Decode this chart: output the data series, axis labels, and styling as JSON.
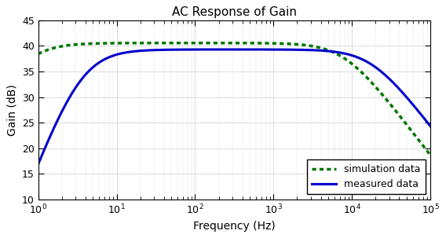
{
  "title": "AC Response of Gain",
  "xlabel": "Frequency (Hz)",
  "ylabel": "Gain (dB)",
  "xlim": [
    1,
    100000
  ],
  "ylim": [
    10,
    45
  ],
  "yticks": [
    10,
    15,
    20,
    25,
    30,
    35,
    40,
    45
  ],
  "background_color": "#ffffff",
  "measured_color": "#0000cc",
  "simulation_color": "#007700",
  "measured_linewidth": 2.2,
  "simulation_linewidth": 2.0,
  "legend_labels": [
    "measured data",
    "simulation data"
  ],
  "title_fontsize": 11,
  "axis_label_fontsize": 10,
  "measured_hp_freq": 3.5,
  "measured_lp_freq": 18000,
  "measured_gain_max": 39.3,
  "sim_hp_freq": 0.8,
  "sim_lp_freq": 8000,
  "sim_gain_max": 40.5,
  "sim_lp_order": 2
}
